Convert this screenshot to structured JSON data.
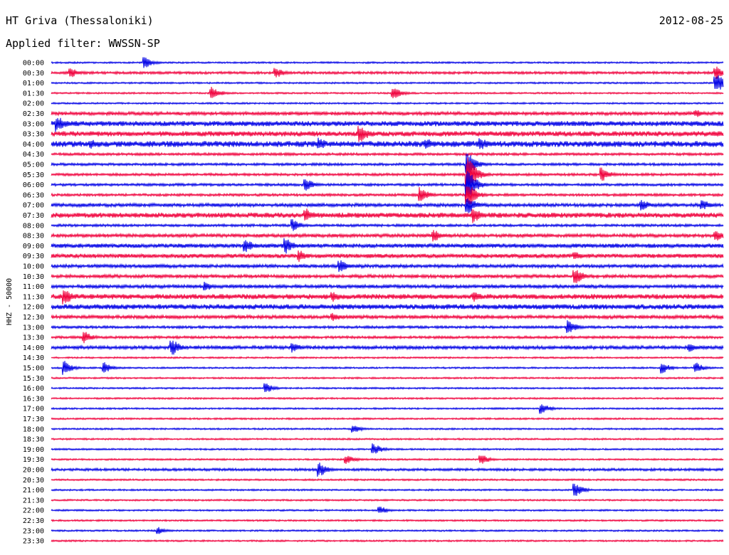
{
  "header": {
    "station": "HT Griva (Thessaloniki)",
    "date": "2012-08-25",
    "filter": "Applied filter: WWSSN-SP"
  },
  "chart_data": {
    "type": "helicorder",
    "ylabel": "HHZ - 50000",
    "row_labels": [
      "00:00",
      "00:30",
      "01:00",
      "01:30",
      "02:00",
      "02:30",
      "03:00",
      "03:30",
      "04:00",
      "04:30",
      "05:00",
      "05:30",
      "06:00",
      "06:30",
      "07:00",
      "07:30",
      "08:00",
      "08:30",
      "09:00",
      "09:30",
      "10:00",
      "10:30",
      "11:00",
      "11:30",
      "12:00",
      "12:30",
      "13:00",
      "13:30",
      "14:00",
      "14:30",
      "15:00",
      "15:30",
      "16:00",
      "16:30",
      "17:00",
      "17:30",
      "18:00",
      "18:30",
      "19:00",
      "19:30",
      "20:00",
      "20:30",
      "21:00",
      "21:30",
      "22:00",
      "22:30",
      "23:00",
      "23:30"
    ],
    "colors": [
      "#0000e6",
      "#f0003c"
    ],
    "noise_level": [
      1,
      1.5,
      1,
      1,
      1,
      2,
      3,
      3,
      3.5,
      1.5,
      1.5,
      1.5,
      1.5,
      1.5,
      2,
      3,
      1.5,
      2,
      2.5,
      2.5,
      2,
      2,
      2,
      3,
      3,
      2,
      1.5,
      1.5,
      2,
      1,
      1,
      1,
      1,
      1,
      1,
      1,
      1,
      1,
      1,
      1,
      1.5,
      1,
      1,
      1,
      1,
      1,
      1,
      1
    ],
    "events": [
      {
        "row": 0,
        "x": 0.14,
        "amp": 8
      },
      {
        "row": 1,
        "x": 0.03,
        "amp": 7
      },
      {
        "row": 1,
        "x": 0.335,
        "amp": 8
      },
      {
        "row": 1,
        "x": 0.99,
        "amp": 10
      },
      {
        "row": 2,
        "x": 0.99,
        "amp": 16
      },
      {
        "row": 3,
        "x": 0.24,
        "amp": 9
      },
      {
        "row": 3,
        "x": 0.51,
        "amp": 9
      },
      {
        "row": 5,
        "x": 0.96,
        "amp": 6
      },
      {
        "row": 6,
        "x": 0.01,
        "amp": 12
      },
      {
        "row": 7,
        "x": 0.46,
        "amp": 14
      },
      {
        "row": 8,
        "x": 0.06,
        "amp": 7
      },
      {
        "row": 8,
        "x": 0.4,
        "amp": 9
      },
      {
        "row": 8,
        "x": 0.56,
        "amp": 8
      },
      {
        "row": 8,
        "x": 0.64,
        "amp": 9
      },
      {
        "row": 10,
        "x": 0.62,
        "amp": 18
      },
      {
        "row": 11,
        "x": 0.62,
        "amp": 28
      },
      {
        "row": 11,
        "x": 0.82,
        "amp": 10
      },
      {
        "row": 12,
        "x": 0.38,
        "amp": 9
      },
      {
        "row": 12,
        "x": 0.62,
        "amp": 24
      },
      {
        "row": 13,
        "x": 0.55,
        "amp": 11
      },
      {
        "row": 13,
        "x": 0.62,
        "amp": 20
      },
      {
        "row": 14,
        "x": 0.62,
        "amp": 14
      },
      {
        "row": 14,
        "x": 0.88,
        "amp": 8
      },
      {
        "row": 14,
        "x": 0.97,
        "amp": 8
      },
      {
        "row": 15,
        "x": 0.38,
        "amp": 10
      },
      {
        "row": 15,
        "x": 0.63,
        "amp": 11
      },
      {
        "row": 16,
        "x": 0.36,
        "amp": 9
      },
      {
        "row": 17,
        "x": 0.57,
        "amp": 9
      },
      {
        "row": 17,
        "x": 0.99,
        "amp": 8
      },
      {
        "row": 18,
        "x": 0.29,
        "amp": 10
      },
      {
        "row": 18,
        "x": 0.35,
        "amp": 11
      },
      {
        "row": 19,
        "x": 0.37,
        "amp": 9
      },
      {
        "row": 19,
        "x": 0.78,
        "amp": 7
      },
      {
        "row": 20,
        "x": 0.43,
        "amp": 9
      },
      {
        "row": 21,
        "x": 0.78,
        "amp": 12
      },
      {
        "row": 22,
        "x": 0.23,
        "amp": 7
      },
      {
        "row": 23,
        "x": 0.02,
        "amp": 13
      },
      {
        "row": 23,
        "x": 0.42,
        "amp": 8
      },
      {
        "row": 23,
        "x": 0.63,
        "amp": 8
      },
      {
        "row": 25,
        "x": 0.42,
        "amp": 7
      },
      {
        "row": 26,
        "x": 0.77,
        "amp": 11
      },
      {
        "row": 27,
        "x": 0.05,
        "amp": 9
      },
      {
        "row": 28,
        "x": 0.18,
        "amp": 13
      },
      {
        "row": 28,
        "x": 0.36,
        "amp": 8
      },
      {
        "row": 28,
        "x": 0.95,
        "amp": 7
      },
      {
        "row": 30,
        "x": 0.02,
        "amp": 10
      },
      {
        "row": 30,
        "x": 0.08,
        "amp": 8
      },
      {
        "row": 30,
        "x": 0.91,
        "amp": 8
      },
      {
        "row": 30,
        "x": 0.96,
        "amp": 8
      },
      {
        "row": 32,
        "x": 0.32,
        "amp": 7
      },
      {
        "row": 34,
        "x": 0.73,
        "amp": 8
      },
      {
        "row": 36,
        "x": 0.45,
        "amp": 6
      },
      {
        "row": 38,
        "x": 0.48,
        "amp": 9
      },
      {
        "row": 39,
        "x": 0.44,
        "amp": 7
      },
      {
        "row": 39,
        "x": 0.64,
        "amp": 8
      },
      {
        "row": 40,
        "x": 0.4,
        "amp": 10
      },
      {
        "row": 42,
        "x": 0.78,
        "amp": 10
      },
      {
        "row": 44,
        "x": 0.49,
        "amp": 6
      },
      {
        "row": 46,
        "x": 0.16,
        "amp": 5
      }
    ]
  }
}
